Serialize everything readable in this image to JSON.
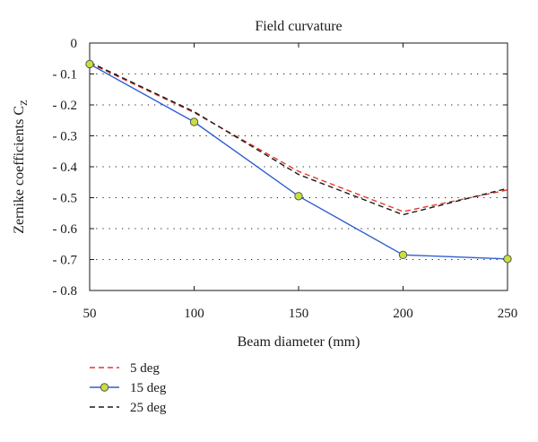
{
  "chart_data": {
    "type": "line",
    "title": "Field curvature",
    "xlabel": "Beam diameter (mm)",
    "ylabel_main": "Zernike coefficients C",
    "ylabel_sub": "Z",
    "x": [
      50,
      100,
      150,
      200,
      250
    ],
    "x_ticks": [
      "50",
      "100",
      "150",
      "200",
      "250"
    ],
    "y_ticks": [
      "0",
      "- 0.1",
      "- 0.2",
      "- 0.3",
      "- 0.4",
      "- 0.5",
      "- 0.6",
      "- 0.7",
      "- 0.8"
    ],
    "xlim": [
      50,
      250
    ],
    "ylim": [
      -0.8,
      0
    ],
    "grid": "horizontal dotted",
    "legend_position": "bottom-left, below plot",
    "series": [
      {
        "name": "5 deg",
        "values": [
          -0.065,
          -0.225,
          -0.415,
          -0.545,
          -0.475
        ],
        "color": "#e8352a",
        "line_style": "dashed",
        "marker": "none"
      },
      {
        "name": "15 deg",
        "values": [
          -0.068,
          -0.255,
          -0.495,
          -0.685,
          -0.698
        ],
        "color": "#2f5fd0",
        "line_style": "solid",
        "marker": "circle",
        "marker_fill": "#c8e03a"
      },
      {
        "name": "25 deg",
        "values": [
          -0.062,
          -0.222,
          -0.425,
          -0.555,
          -0.47
        ],
        "color": "#1a1a1a",
        "line_style": "dashed",
        "marker": "none"
      }
    ]
  }
}
